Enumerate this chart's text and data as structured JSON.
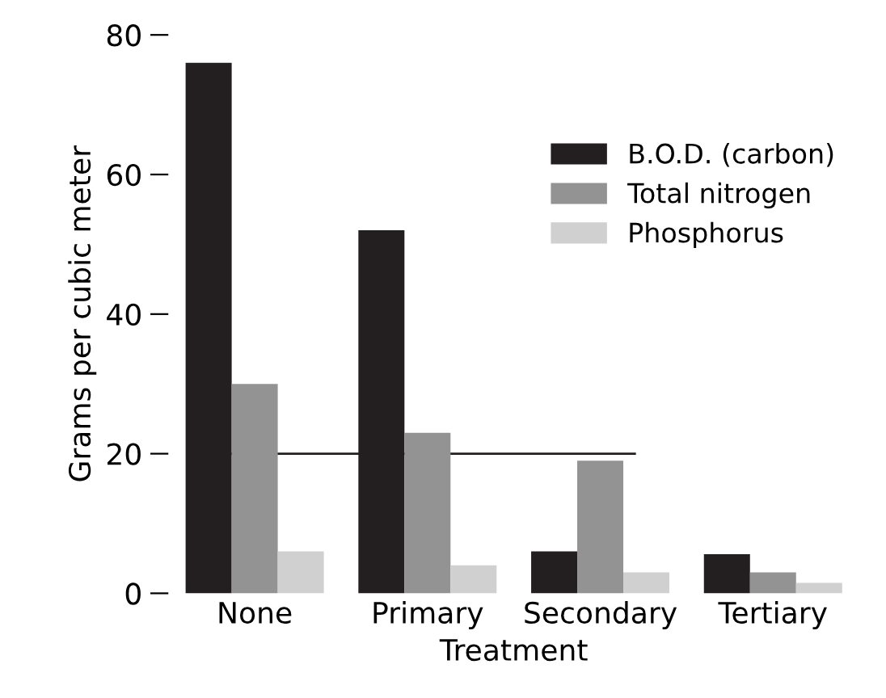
{
  "chart_data": {
    "type": "bar",
    "xlabel": "Treatment",
    "ylabel": "Grams per cubic meter",
    "categories": [
      "None",
      "Primary",
      "Secondary",
      "Tertiary"
    ],
    "series": [
      {
        "name": "B.O.D. (carbon)",
        "color": "#231f20",
        "values": [
          76,
          52,
          6,
          5.6
        ]
      },
      {
        "name": "Total nitrogen",
        "color": "#939393",
        "values": [
          30,
          23,
          19,
          3
        ]
      },
      {
        "name": "Phosphorus",
        "color": "#d0d0d0",
        "values": [
          6,
          4,
          3,
          1.5
        ]
      }
    ],
    "ylim": [
      0,
      80
    ],
    "yticks": [
      0,
      20,
      40,
      60,
      80
    ],
    "ref_lines": [
      {
        "axis": "y",
        "value": 20,
        "color": "#231f20"
      }
    ],
    "grid": false,
    "legend": "top right"
  }
}
